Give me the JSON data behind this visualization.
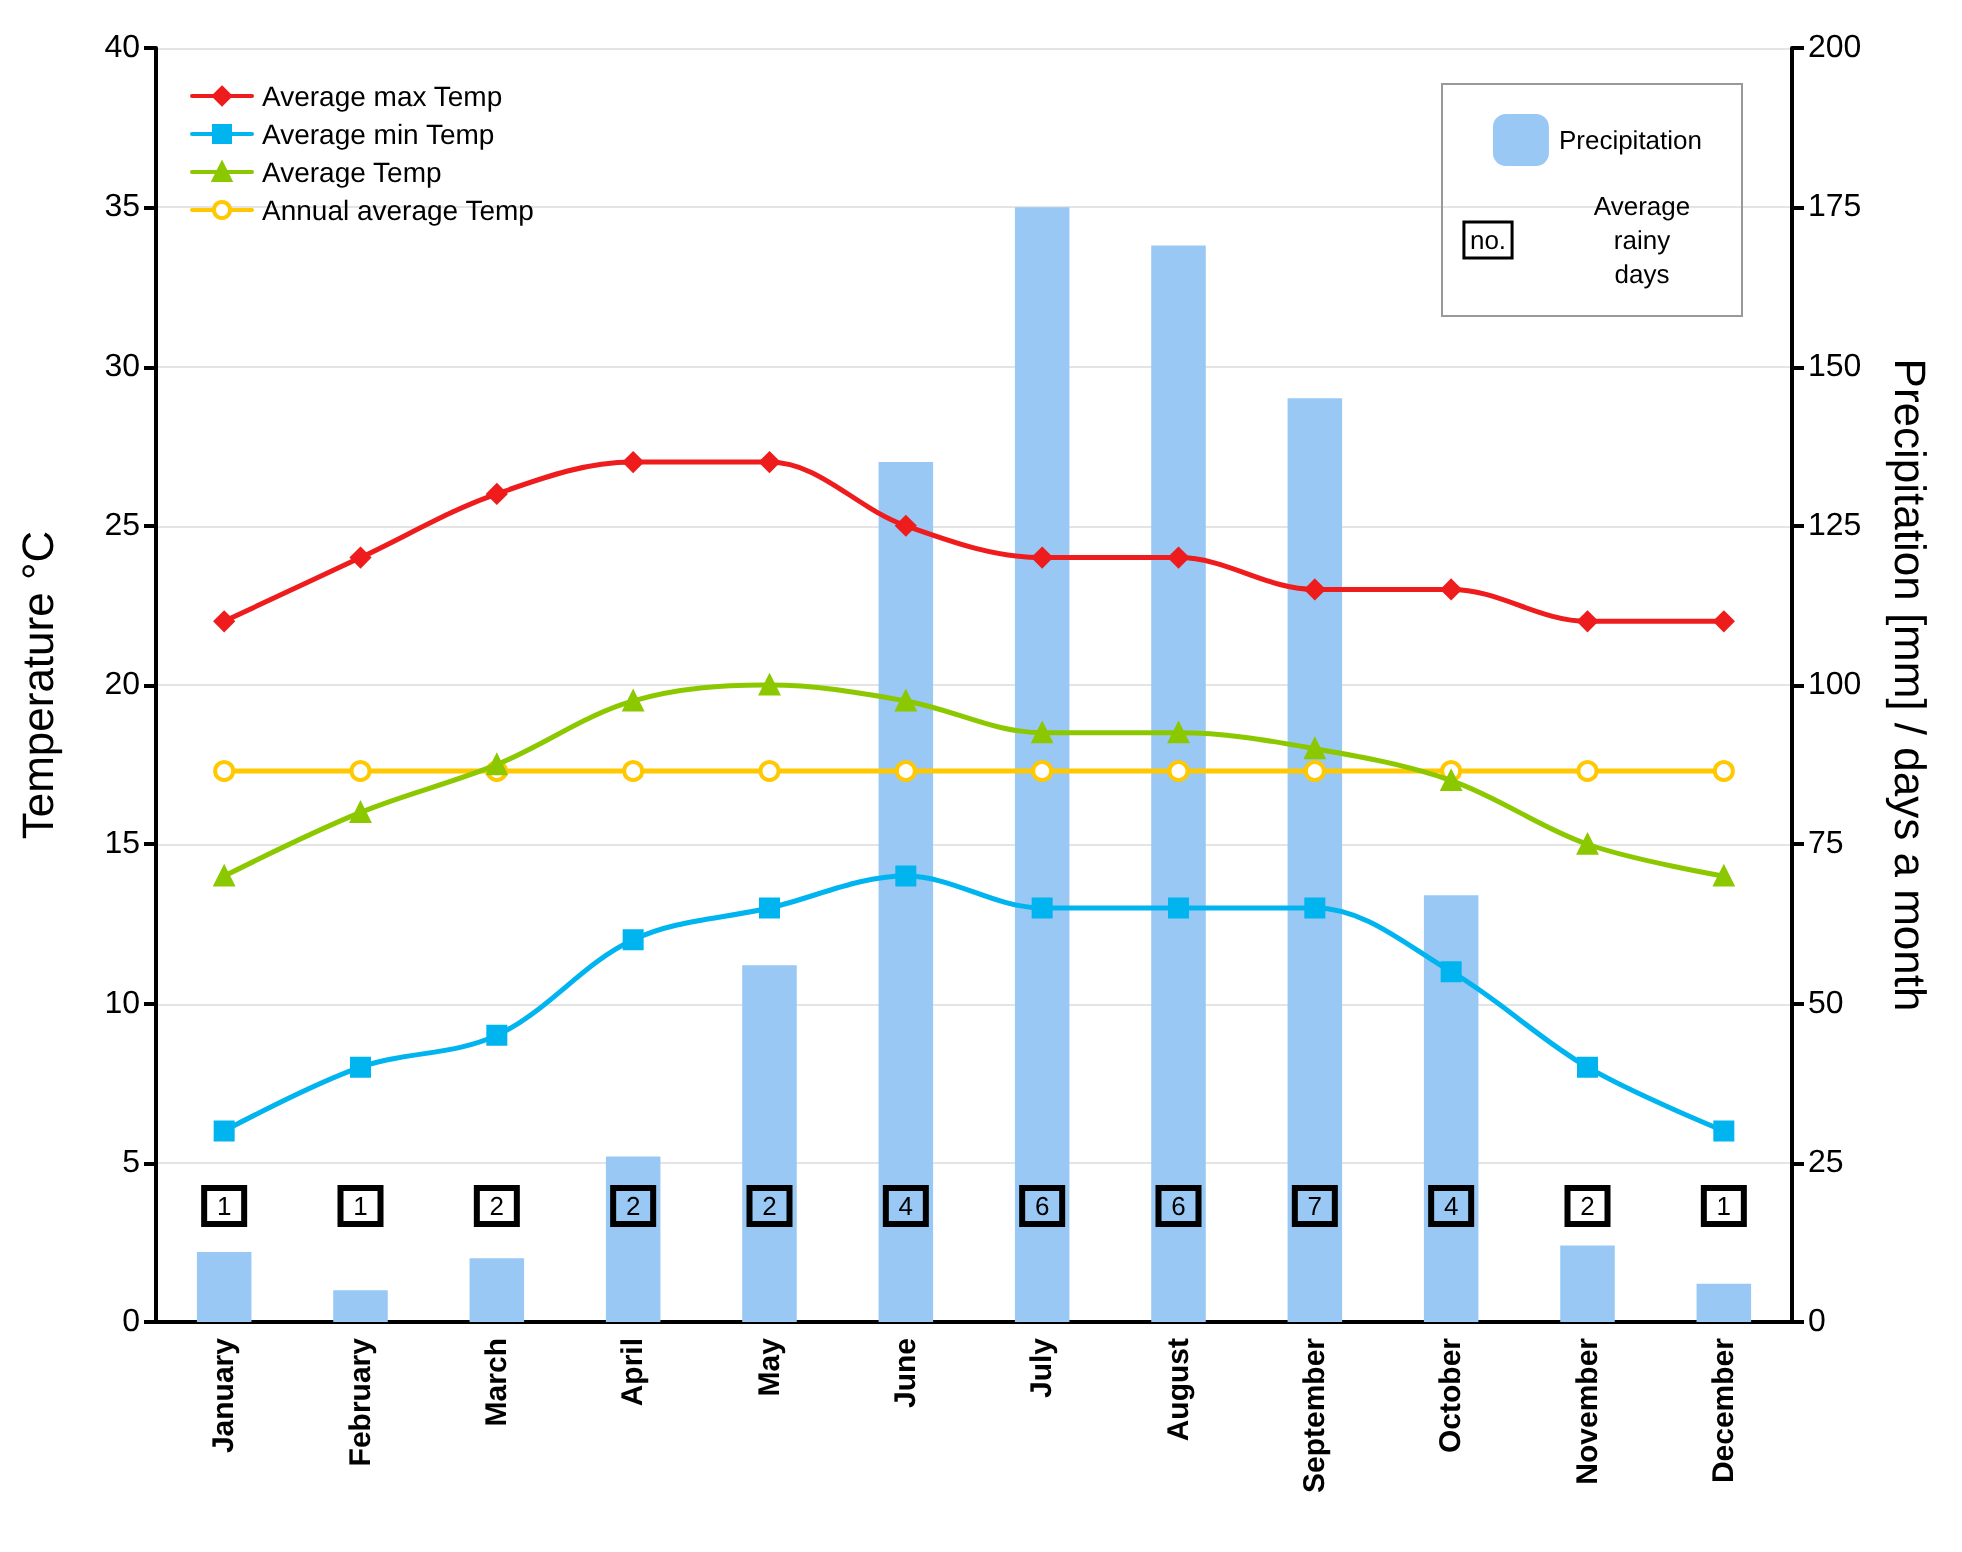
{
  "chart_data": {
    "type": "line",
    "ylabel": "Temperature °C",
    "y2label": "Precipitation [mm] / days a month",
    "categories": [
      "January",
      "February",
      "March",
      "April",
      "May",
      "June",
      "July",
      "August",
      "September",
      "October",
      "November",
      "December"
    ],
    "ylim": [
      0,
      40
    ],
    "yticks": [
      0,
      5,
      10,
      15,
      20,
      25,
      30,
      35,
      40
    ],
    "y2lim": [
      0,
      200
    ],
    "y2ticks": [
      0,
      25,
      50,
      75,
      100,
      125,
      150,
      175,
      200
    ],
    "grid": "y",
    "legend": "top left",
    "series": [
      {
        "name": "Precipitation",
        "type": "bar",
        "axis": "y2",
        "color": "#99c8f5",
        "values": [
          11,
          5,
          10,
          26,
          56,
          135,
          175,
          169,
          145,
          67,
          12,
          6
        ]
      },
      {
        "name": "Average max Temp",
        "color": "#ee1c1c",
        "marker": "diamond",
        "values": [
          22,
          24,
          26,
          27,
          27,
          25,
          24,
          24,
          23,
          23,
          22,
          22
        ]
      },
      {
        "name": "Average min Temp",
        "color": "#00b4ef",
        "marker": "square",
        "values": [
          6,
          8,
          9,
          12,
          13,
          14,
          13,
          13,
          13,
          11,
          8,
          6
        ]
      },
      {
        "name": "Average Temp",
        "color": "#8cc800",
        "marker": "triangle",
        "values": [
          14,
          16,
          17.5,
          19.5,
          20,
          19.5,
          18.5,
          18.5,
          18,
          17,
          15,
          14
        ]
      },
      {
        "name": "Annual average Temp",
        "color": "#ffc800",
        "marker": "circle",
        "values": [
          17.3,
          17.3,
          17.3,
          17.3,
          17.3,
          17.3,
          17.3,
          17.3,
          17.3,
          17.3,
          17.3,
          17.3
        ]
      }
    ],
    "annotations": [
      {
        "text": "1",
        "x": "January"
      },
      {
        "text": "1",
        "x": "February"
      },
      {
        "text": "2",
        "x": "March"
      },
      {
        "text": "2",
        "x": "April"
      },
      {
        "text": "2",
        "x": "May"
      },
      {
        "text": "4",
        "x": "June"
      },
      {
        "text": "6",
        "x": "July"
      },
      {
        "text": "6",
        "x": "August"
      },
      {
        "text": "7",
        "x": "September"
      },
      {
        "text": "4",
        "x": "October"
      },
      {
        "text": "2",
        "x": "November"
      },
      {
        "text": "1",
        "x": "December"
      },
      "no.",
      "Average rainy days"
    ]
  }
}
